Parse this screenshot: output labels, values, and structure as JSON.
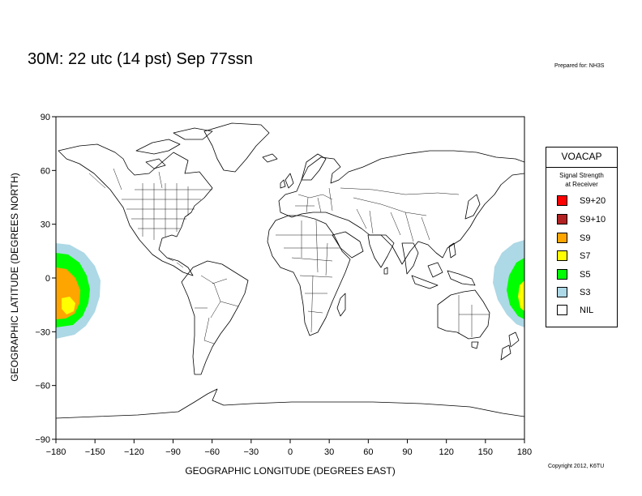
{
  "title": "30M:  22 utc (14 pst) Sep 77ssn",
  "prepared_for": "Prepared for: NH3S",
  "copyright": "Copyright 2012, K6TU",
  "axes": {
    "xlabel": "GEOGRAPHIC LONGITUDE (DEGREES EAST)",
    "ylabel": "GEOGRAPHIC LATITUDE (DEGREES NORTH)",
    "xlim": [
      -180,
      180
    ],
    "ylim": [
      -90,
      90
    ],
    "xticks": [
      -180,
      -150,
      -120,
      -90,
      -60,
      -30,
      0,
      30,
      60,
      90,
      120,
      150,
      180
    ],
    "yticks": [
      90,
      60,
      30,
      0,
      -30,
      -60,
      -90
    ],
    "xtick_labels": [
      "−180",
      "−150",
      "−120",
      "−90",
      "−60",
      "−30",
      "0",
      "30",
      "60",
      "90",
      "120",
      "150",
      "180"
    ],
    "ytick_labels": [
      "90",
      "60",
      "30",
      "0",
      "−30",
      "−60",
      "−90"
    ]
  },
  "legend": {
    "title": "VOACAP",
    "subtitle_line1": "Signal Strength",
    "subtitle_line2": "at Receiver",
    "items": [
      {
        "label": "S9+20",
        "color": "#ff0000"
      },
      {
        "label": "S9+10",
        "color": "#b22222"
      },
      {
        "label": "S9",
        "color": "#ffa500"
      },
      {
        "label": "S7",
        "color": "#ffff00"
      },
      {
        "label": "S5",
        "color": "#00ff00"
      },
      {
        "label": "S3",
        "color": "#add8e6"
      },
      {
        "label": "NIL",
        "color": "#ffffff"
      }
    ]
  }
}
